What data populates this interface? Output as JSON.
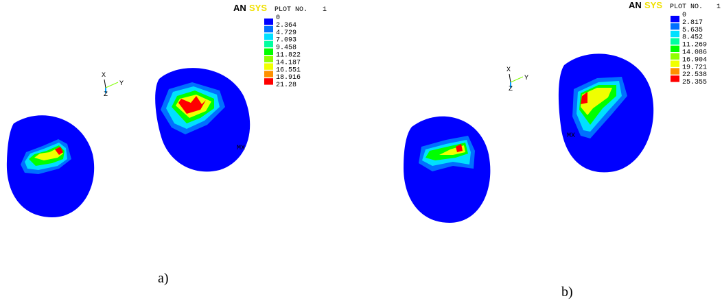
{
  "panels": [
    {
      "caption": "a)",
      "logo": {
        "an": "AN",
        "sys": "SYS"
      },
      "plot_label": "PLOT NO.",
      "plot_number": "1",
      "legend": {
        "colors": [
          "#0000ff",
          "#0070ff",
          "#00e0ff",
          "#00ffa0",
          "#00ff00",
          "#90ff00",
          "#f0ff00",
          "#ff9000",
          "#ff0000"
        ],
        "levels": [
          "0",
          "2.364",
          "4.729",
          "7.093",
          "9.458",
          "11.822",
          "14.187",
          "16.551",
          "18.916",
          "21.28"
        ]
      },
      "triad": {
        "x": "X",
        "y": "Y",
        "z": "Z"
      },
      "max_marker": "MX"
    },
    {
      "caption": "b)",
      "logo": {
        "an": "AN",
        "sys": "SYS"
      },
      "plot_label": "PLOT NO.",
      "plot_number": "1",
      "legend": {
        "colors": [
          "#0000ff",
          "#0070ff",
          "#00e0ff",
          "#00ffa0",
          "#00ff00",
          "#90ff00",
          "#f0ff00",
          "#ff9000",
          "#ff0000"
        ],
        "levels": [
          "0",
          "2.817",
          "5.635",
          "8.452",
          "11.269",
          "14.086",
          "16.904",
          "19.721",
          "22.538",
          "25.355"
        ]
      },
      "triad": {
        "x": "X",
        "y": "Y",
        "z": "Z"
      },
      "max_marker": "MX"
    }
  ]
}
